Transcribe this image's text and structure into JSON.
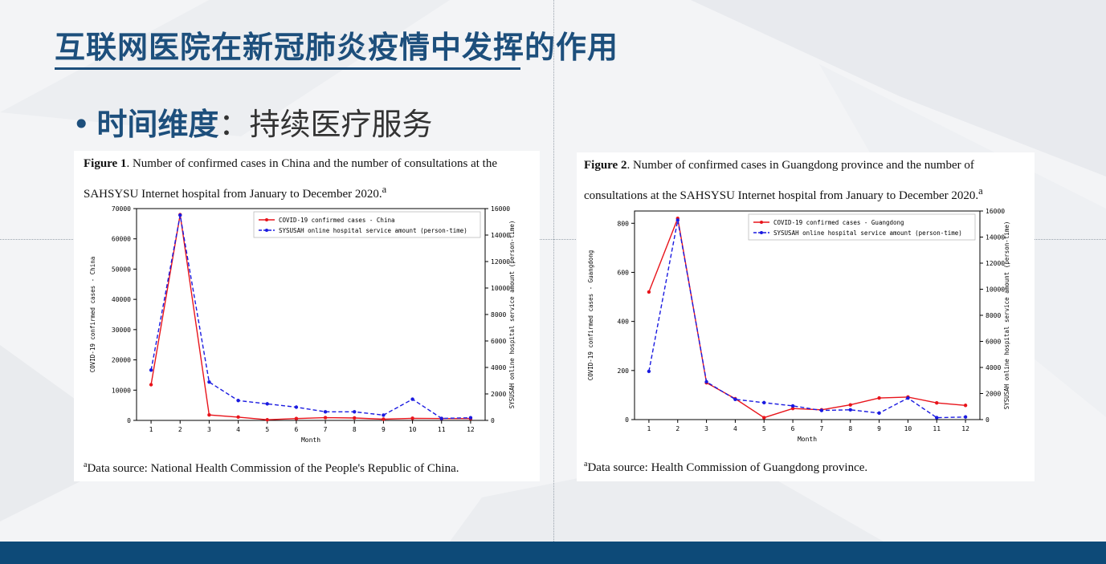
{
  "slide": {
    "title": "互联网医院在新冠肺炎疫情中发挥的作用",
    "bullet_symbol": "•",
    "subtitle_strong": "时间维度",
    "subtitle_rest": "：持续医疗服务"
  },
  "figure1": {
    "caption_label": "Figure 1",
    "caption_text": ". Number of confirmed cases in China and the number of consultations at the SAHSYSU Internet hospital from January to December 2020.",
    "caption_sup": "a",
    "source_sup": "a",
    "source_text": "Data source: National Health Commission of the People's Republic of China."
  },
  "figure2": {
    "caption_label": "Figure 2",
    "caption_text": ". Number of confirmed cases in Guangdong province and the number of consultations at the SAHSYSU Internet hospital from January to December 2020.",
    "caption_sup": "a",
    "source_sup": "a",
    "source_text": "Data source: Health Commission of Guangdong province."
  },
  "colors": {
    "title": "#1d4f7c",
    "series_cases": "#e8141b",
    "series_service": "#1a1ae0",
    "footer": "#0d4a78"
  },
  "chart_data": [
    {
      "type": "line",
      "xlabel": "Month",
      "ylabel": "COVID-19 confirmed cases - China",
      "y2label": "SYSUSAH online hospital service amount (person-time)",
      "x": [
        1,
        2,
        3,
        4,
        5,
        6,
        7,
        8,
        9,
        10,
        11,
        12
      ],
      "ylim": [
        0,
        70000
      ],
      "y2lim": [
        0,
        16000
      ],
      "yticks": [
        0,
        10000,
        20000,
        30000,
        40000,
        50000,
        60000,
        70000
      ],
      "y2ticks": [
        0,
        2000,
        4000,
        6000,
        8000,
        10000,
        12000,
        14000,
        16000
      ],
      "legend_position": "top-right",
      "series": [
        {
          "name": "COVID-19 confirmed cases - China",
          "axis": "left",
          "style": "solid",
          "values": [
            11800,
            68000,
            1800,
            1100,
            200,
            600,
            900,
            800,
            400,
            700,
            600,
            600
          ]
        },
        {
          "name": "SYSUSAH online hospital service amount (person-time)",
          "axis": "right",
          "style": "dashed",
          "values": [
            3800,
            15500,
            2900,
            1500,
            1250,
            1000,
            650,
            650,
            400,
            1600,
            150,
            200
          ]
        }
      ]
    },
    {
      "type": "line",
      "xlabel": "Month",
      "ylabel": "COVID-19 confirmed cases - Guangdong",
      "y2label": "SYSUSAH online hospital service amount (person-time)",
      "x": [
        1,
        2,
        3,
        4,
        5,
        6,
        7,
        8,
        9,
        10,
        11,
        12
      ],
      "ylim": [
        0,
        850
      ],
      "y2lim": [
        0,
        16000
      ],
      "yticks": [
        0,
        200,
        400,
        600,
        800
      ],
      "y2ticks": [
        0,
        2000,
        4000,
        6000,
        8000,
        10000,
        12000,
        14000,
        16000
      ],
      "legend_position": "top-right",
      "series": [
        {
          "name": "COVID-19 confirmed cases - Guangdong",
          "axis": "left",
          "style": "solid",
          "values": [
            520,
            820,
            150,
            85,
            8,
            45,
            40,
            60,
            88,
            92,
            68,
            58
          ]
        },
        {
          "name": "SYSUSAH online hospital service amount (person-time)",
          "axis": "right",
          "style": "dashed",
          "values": [
            3700,
            15300,
            2900,
            1550,
            1300,
            1050,
            700,
            750,
            500,
            1650,
            150,
            200
          ]
        }
      ]
    }
  ]
}
